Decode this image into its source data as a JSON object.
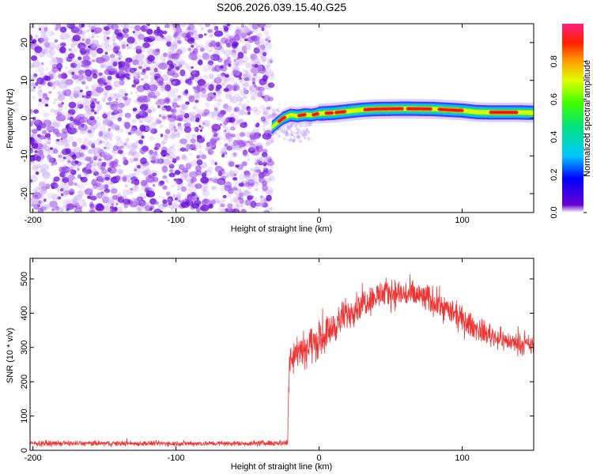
{
  "title": "S206.2026.039.15.40.G25",
  "chart_data": [
    {
      "type": "heatmap",
      "name": "spectrogram",
      "xlabel": "Height of straight line (km)",
      "ylabel": "Frequency (Hz)",
      "xlim": [
        -202,
        150
      ],
      "ylim": [
        -25,
        25
      ],
      "xticks": [
        -200,
        -100,
        0,
        100
      ],
      "xtick_labels": [
        "-200",
        "-100",
        "0",
        "100"
      ],
      "yticks": [
        -20,
        -10,
        0,
        10,
        20
      ],
      "ytick_labels": [
        "-20",
        "-10",
        "0",
        "10",
        "20"
      ],
      "noise_region_x": [
        -202,
        -33
      ],
      "ridge": {
        "x": [
          -33,
          -30,
          -25,
          -20,
          -15,
          -10,
          -5,
          0,
          10,
          20,
          30,
          40,
          60,
          80,
          100,
          110,
          120,
          130,
          140,
          150
        ],
        "freq": [
          -2.5,
          -1.5,
          0.0,
          0.8,
          0.6,
          0.9,
          0.8,
          1.2,
          1.4,
          1.8,
          2.2,
          2.4,
          2.5,
          2.4,
          2.0,
          1.6,
          1.5,
          1.5,
          1.5,
          1.4
        ]
      },
      "colorbar": {
        "label": "Normalized spectral amplitude",
        "range": [
          0,
          1
        ],
        "ticks": [
          0.0,
          0.2,
          0.4,
          0.6,
          0.8
        ],
        "tick_labels": [
          "0.0",
          "0.2",
          "0.4",
          "0.6",
          "0.8"
        ]
      }
    },
    {
      "type": "line",
      "name": "snr",
      "xlabel": "Height of straight line (km)",
      "ylabel": "SNR (10 * v/v)",
      "xlim": [
        -202,
        150
      ],
      "ylim": [
        0,
        560
      ],
      "xticks": [
        -200,
        -100,
        0,
        100
      ],
      "xtick_labels": [
        "-200",
        "-100",
        "0",
        "100"
      ],
      "yticks": [
        0,
        100,
        200,
        300,
        400,
        500
      ],
      "ytick_labels": [
        "0",
        "100",
        "200",
        "300",
        "400",
        "500"
      ],
      "color": "#ee3333",
      "envelope_x": [
        -202,
        -50,
        -22,
        -21,
        -18,
        -10,
        0,
        10,
        20,
        30,
        40,
        50,
        60,
        70,
        80,
        90,
        100,
        110,
        120,
        130,
        140,
        150
      ],
      "envelope_mean": [
        20,
        20,
        22,
        250,
        290,
        300,
        320,
        360,
        400,
        430,
        450,
        460,
        455,
        450,
        435,
        410,
        380,
        355,
        335,
        320,
        310,
        305
      ],
      "envelope_spread": [
        8,
        8,
        10,
        60,
        60,
        60,
        55,
        50,
        50,
        45,
        45,
        45,
        45,
        45,
        45,
        40,
        40,
        35,
        35,
        30,
        30,
        30
      ]
    }
  ],
  "colors": {
    "noise": "#8a2be2",
    "axis": "#000000",
    "line": "#ee3333"
  }
}
